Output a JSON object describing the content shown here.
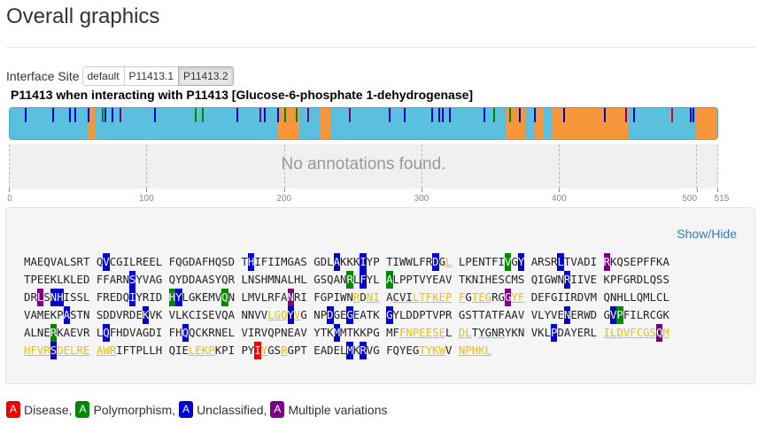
{
  "page": {
    "title": "Overall graphics"
  },
  "interface": {
    "label": "Interface Site",
    "options": [
      "default",
      "P11413.1",
      "P11413.2"
    ],
    "selected": "P11413.2"
  },
  "protein": {
    "title": "P11413 when interacting with P11413 [Glucose-6-phosphate 1-dehydrogenase]",
    "length": 515
  },
  "annotations": {
    "empty_message": "No annotations found."
  },
  "axis": {
    "ticks": [
      0,
      100,
      200,
      300,
      400,
      500,
      515
    ]
  },
  "sequence": {
    "toggle_label": "Show/Hide",
    "lines": [
      "MAEQVALSRT QVCGILREEL FQGDAFHQSD THIFIIMGAS GDLAKKKIYP TIWWLFRDGL LPENTFIVGY ARSRLTVADI RKQSEPFFKA",
      "TPEEKLKLED FFARNSYVAG QYDDAASYQR LNSHMNALHL GSQANRLFYL ALPPTVYEAV TKNIHESCMS QIGWNRIIVE KPFGRDLQSS",
      "DRLSNHISSL FREDQIYRID HYLGKEMVQN LMVLRFANRI FGPIWNRDNI ACVILTFKEP FGTEGRGGYF DEFGIIRDVM QNHLLQMLCL",
      "VAMEKPASTN SDDVRDEKVK VLKCISEVQA NNVVLGQYVG NPDGEGEATK GYLDDPTVPR GSTTATFAAV VLYVENERWD GVPFILRCGK",
      "ALNERKAEVR LQFHDVAGDI FHQQCKRNEL VIRVQPNEAV YTKMMTKKPG MFFNPEESEL DLTYGNRYKN VKLPDAYERL ILDVFCGSQM",
      "HFVRSDELRE AWRIFTPLLH QIELEKPKPI PYIYGSRGPT EADELMKRVG FQYEGTYKWV NPHKL"
    ],
    "highlights": [
      {
        "pos": 12,
        "class": "unc"
      },
      {
        "pos": 32,
        "class": "unc"
      },
      {
        "pos": 44,
        "class": "unc"
      },
      {
        "pos": 48,
        "class": "unc"
      },
      {
        "pos": 58,
        "class": "unc"
      },
      {
        "pos": 60,
        "class": "iu"
      },
      {
        "pos": 68,
        "class": "pol"
      },
      {
        "pos": 70,
        "class": "unc"
      },
      {
        "pos": 75,
        "class": "unc"
      },
      {
        "pos": 81,
        "class": "mul"
      },
      {
        "pos": 106,
        "class": "unc"
      },
      {
        "pos": 136,
        "class": "pol"
      },
      {
        "pos": 138,
        "class": "unc"
      },
      {
        "pos": 141,
        "class": "pol"
      },
      {
        "pos": 166,
        "class": "unc"
      },
      {
        "pos": 183,
        "class": "mul"
      },
      {
        "pos": 185,
        "class": "unc"
      },
      {
        "pos": 186,
        "class": "unc"
      },
      {
        "pos": 196,
        "class": "unc"
      },
      {
        "pos": 201,
        "class": "pol"
      },
      {
        "pos": 202,
        "class": "unc"
      },
      {
        "pos": 209,
        "class": "pol"
      },
      {
        "pos": 218,
        "class": "mul"
      },
      {
        "pos": 227,
        "class": "iu"
      },
      {
        "pos": 229,
        "class": "iu"
      },
      {
        "pos": 230,
        "class": "iu"
      },
      {
        "pos": 232,
        "class": "bu"
      },
      {
        "pos": 233,
        "class": "bu"
      },
      {
        "pos": 234,
        "class": "bu"
      },
      {
        "pos": 235,
        "class": "iu"
      },
      {
        "pos": 236,
        "class": "iu"
      },
      {
        "pos": 237,
        "class": "iu"
      },
      {
        "pos": 238,
        "class": "iu"
      },
      {
        "pos": 239,
        "class": "iu"
      },
      {
        "pos": 240,
        "class": "iu"
      },
      {
        "pos": 241,
        "class": "iu"
      },
      {
        "pos": 243,
        "class": "iu"
      },
      {
        "pos": 244,
        "class": "iu"
      },
      {
        "pos": 245,
        "class": "iu"
      },
      {
        "pos": 248,
        "class": "mul"
      },
      {
        "pos": 249,
        "class": "iu"
      },
      {
        "pos": 250,
        "class": "iu"
      },
      {
        "pos": 277,
        "class": "unc"
      },
      {
        "pos": 288,
        "class": "unc"
      },
      {
        "pos": 305,
        "class": "iu"
      },
      {
        "pos": 306,
        "class": "iu"
      },
      {
        "pos": 307,
        "class": "iu"
      },
      {
        "pos": 308,
        "class": "unc"
      },
      {
        "pos": 309,
        "class": "iu"
      },
      {
        "pos": 313,
        "class": "unc"
      },
      {
        "pos": 316,
        "class": "unc"
      },
      {
        "pos": 321,
        "class": "unc"
      },
      {
        "pos": 346,
        "class": "unc"
      },
      {
        "pos": 352,
        "class": "unc"
      },
      {
        "pos": 353,
        "class": "pol"
      },
      {
        "pos": 365,
        "class": "pol"
      },
      {
        "pos": 372,
        "class": "unc"
      },
      {
        "pos": 383,
        "class": "unc"
      },
      {
        "pos": 404,
        "class": "unc"
      },
      {
        "pos": 413,
        "class": "iu"
      },
      {
        "pos": 414,
        "class": "iu"
      },
      {
        "pos": 415,
        "class": "iu"
      },
      {
        "pos": 416,
        "class": "iu"
      },
      {
        "pos": 417,
        "class": "iu"
      },
      {
        "pos": 418,
        "class": "iu"
      },
      {
        "pos": 419,
        "class": "iu"
      },
      {
        "pos": 421,
        "class": "iu"
      },
      {
        "pos": 422,
        "class": "iu"
      },
      {
        "pos": 424,
        "class": "bu"
      },
      {
        "pos": 425,
        "class": "bu"
      },
      {
        "pos": 426,
        "class": "bu"
      },
      {
        "pos": 427,
        "class": "bu"
      },
      {
        "pos": 434,
        "class": "unc"
      },
      {
        "pos": 441,
        "class": "iu"
      },
      {
        "pos": 442,
        "class": "iu"
      },
      {
        "pos": 443,
        "class": "iu"
      },
      {
        "pos": 444,
        "class": "iu"
      },
      {
        "pos": 445,
        "class": "iu"
      },
      {
        "pos": 446,
        "class": "iu"
      },
      {
        "pos": 447,
        "class": "iu"
      },
      {
        "pos": 448,
        "class": "iu"
      },
      {
        "pos": 449,
        "class": "mul"
      },
      {
        "pos": 450,
        "class": "iu"
      },
      {
        "pos": 451,
        "class": "iu"
      },
      {
        "pos": 452,
        "class": "iu"
      },
      {
        "pos": 453,
        "class": "iu"
      },
      {
        "pos": 454,
        "class": "iu"
      },
      {
        "pos": 455,
        "class": "unc"
      },
      {
        "pos": 456,
        "class": "iu"
      },
      {
        "pos": 457,
        "class": "iu"
      },
      {
        "pos": 458,
        "class": "iu"
      },
      {
        "pos": 459,
        "class": "iu"
      },
      {
        "pos": 460,
        "class": "iu"
      },
      {
        "pos": 461,
        "class": "iu"
      },
      {
        "pos": 462,
        "class": "iu"
      },
      {
        "pos": 463,
        "class": "iu"
      },
      {
        "pos": 474,
        "class": "iu"
      },
      {
        "pos": 475,
        "class": "iu"
      },
      {
        "pos": 476,
        "class": "iu"
      },
      {
        "pos": 477,
        "class": "iu"
      },
      {
        "pos": 483,
        "class": "dis"
      },
      {
        "pos": 484,
        "class": "iu"
      },
      {
        "pos": 487,
        "class": "iu"
      },
      {
        "pos": 496,
        "class": "unc"
      },
      {
        "pos": 498,
        "class": "unc"
      },
      {
        "pos": 506,
        "class": "iu"
      },
      {
        "pos": 507,
        "class": "iu"
      },
      {
        "pos": 508,
        "class": "iu"
      },
      {
        "pos": 509,
        "class": "iu"
      },
      {
        "pos": 511,
        "class": "iu"
      },
      {
        "pos": 512,
        "class": "iu"
      },
      {
        "pos": 513,
        "class": "iu"
      },
      {
        "pos": 514,
        "class": "iu"
      },
      {
        "pos": 515,
        "class": "iu"
      }
    ]
  },
  "track": {
    "interface_ranges": [
      [
        58,
        61
      ],
      [
        197,
        210
      ],
      [
        228,
        233
      ],
      [
        363,
        375
      ],
      [
        384,
        388
      ],
      [
        396,
        450
      ],
      [
        501,
        515
      ]
    ],
    "variants": [
      {
        "pos": 12,
        "class": "unc"
      },
      {
        "pos": 32,
        "class": "unc"
      },
      {
        "pos": 44,
        "class": "unc"
      },
      {
        "pos": 48,
        "class": "unc"
      },
      {
        "pos": 58,
        "class": "unc"
      },
      {
        "pos": 68,
        "class": "pol"
      },
      {
        "pos": 70,
        "class": "unc"
      },
      {
        "pos": 75,
        "class": "unc"
      },
      {
        "pos": 81,
        "class": "mul"
      },
      {
        "pos": 106,
        "class": "unc"
      },
      {
        "pos": 136,
        "class": "pol"
      },
      {
        "pos": 141,
        "class": "pol"
      },
      {
        "pos": 166,
        "class": "unc"
      },
      {
        "pos": 183,
        "class": "mul"
      },
      {
        "pos": 186,
        "class": "unc"
      },
      {
        "pos": 196,
        "class": "unc"
      },
      {
        "pos": 201,
        "class": "pol"
      },
      {
        "pos": 209,
        "class": "pol"
      },
      {
        "pos": 218,
        "class": "mul"
      },
      {
        "pos": 248,
        "class": "mul"
      },
      {
        "pos": 277,
        "class": "unc"
      },
      {
        "pos": 288,
        "class": "unc"
      },
      {
        "pos": 308,
        "class": "unc"
      },
      {
        "pos": 313,
        "class": "unc"
      },
      {
        "pos": 316,
        "class": "unc"
      },
      {
        "pos": 321,
        "class": "unc"
      },
      {
        "pos": 346,
        "class": "unc"
      },
      {
        "pos": 353,
        "class": "pol"
      },
      {
        "pos": 365,
        "class": "pol"
      },
      {
        "pos": 372,
        "class": "unc"
      },
      {
        "pos": 383,
        "class": "unc"
      },
      {
        "pos": 404,
        "class": "unc"
      },
      {
        "pos": 434,
        "class": "unc"
      },
      {
        "pos": 449,
        "class": "mul"
      },
      {
        "pos": 455,
        "class": "unc"
      },
      {
        "pos": 483,
        "class": "dis"
      },
      {
        "pos": 496,
        "class": "unc"
      },
      {
        "pos": 498,
        "class": "unc"
      }
    ]
  },
  "colors": {
    "protein": "#5bc0de",
    "interface": "#f7963a",
    "disease": "#ee0000",
    "polymorphism": "#008800",
    "unclassified": "#0000cc",
    "multiple": "#7a0080"
  },
  "legend": [
    {
      "badge": "A",
      "label": "Disease,",
      "class": "dis"
    },
    {
      "badge": "A",
      "label": "Polymorphism,",
      "class": "pol"
    },
    {
      "badge": "A",
      "label": "Unclassified,",
      "class": "unc"
    },
    {
      "badge": "A",
      "label": "Multiple variations",
      "class": "mul"
    }
  ]
}
